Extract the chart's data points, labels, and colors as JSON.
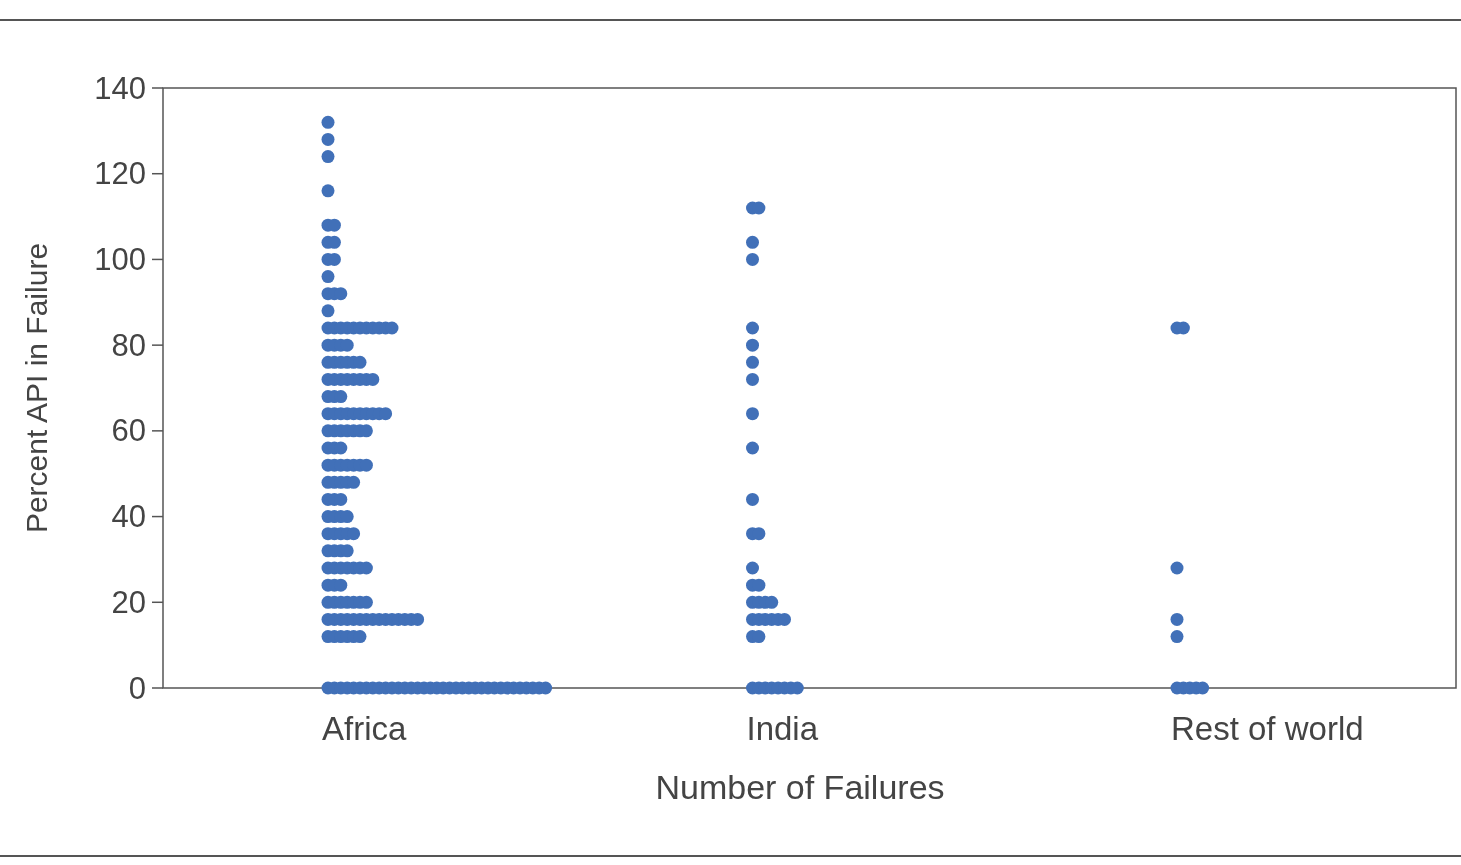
{
  "chart_data": {
    "type": "scatter",
    "xlabel": "Number of Failures",
    "ylabel": "Percent API in Failure",
    "categories": [
      "Africa",
      "India",
      "Rest of world"
    ],
    "ylim": [
      0,
      140
    ],
    "yticks": [
      0,
      20,
      40,
      60,
      80,
      100,
      120,
      140
    ],
    "marker": "circle",
    "series": [
      {
        "color": "#4170b8",
        "x": [
          "Africa",
          "Africa",
          "Africa",
          "Africa",
          "Africa",
          "Africa",
          "Africa",
          "Africa",
          "Africa",
          "Africa",
          "Africa",
          "Africa",
          "Africa",
          "Africa",
          "Africa",
          "Africa",
          "Africa",
          "Africa",
          "Africa",
          "Africa",
          "Africa",
          "Africa",
          "Africa",
          "Africa",
          "Africa",
          "Africa",
          "Africa",
          "Africa",
          "Africa",
          "Africa",
          "Africa",
          "Africa",
          "Africa",
          "Africa",
          "Africa",
          "Africa",
          "Africa",
          "Africa",
          "Africa",
          "Africa",
          "Africa",
          "Africa",
          "Africa",
          "Africa",
          "Africa",
          "Africa",
          "Africa",
          "Africa",
          "Africa",
          "Africa",
          "Africa",
          "Africa",
          "Africa",
          "Africa",
          "Africa",
          "Africa",
          "Africa",
          "Africa",
          "Africa",
          "Africa",
          "Africa",
          "Africa",
          "Africa",
          "Africa",
          "Africa",
          "Africa",
          "Africa",
          "Africa",
          "Africa",
          "Africa",
          "Africa",
          "Africa",
          "Africa",
          "Africa",
          "Africa",
          "Africa",
          "Africa",
          "Africa",
          "Africa",
          "Africa",
          "Africa",
          "Africa",
          "Africa",
          "Africa",
          "Africa",
          "Africa",
          "Africa",
          "Africa",
          "Africa",
          "Africa",
          "Africa",
          "Africa",
          "Africa",
          "Africa",
          "Africa",
          "Africa",
          "Africa",
          "Africa",
          "Africa",
          "Africa",
          "Africa",
          "Africa",
          "Africa",
          "Africa",
          "Africa",
          "Africa",
          "Africa",
          "Africa",
          "Africa",
          "Africa",
          "Africa",
          "Africa",
          "Africa",
          "Africa",
          "Africa",
          "Africa",
          "Africa",
          "Africa",
          "Africa",
          "Africa",
          "Africa",
          "Africa",
          "Africa",
          "Africa",
          "Africa",
          "Africa",
          "Africa",
          "Africa",
          "Africa",
          "Africa",
          "Africa",
          "Africa",
          "Africa",
          "Africa",
          "Africa",
          "Africa",
          "Africa",
          "Africa",
          "Africa",
          "Africa",
          "Africa",
          "Africa",
          "Africa",
          "Africa",
          "Africa",
          "Africa",
          "Africa",
          "Africa",
          "Africa",
          "Africa",
          "Africa",
          "Africa",
          "Africa",
          "Africa",
          "Africa",
          "Africa",
          "Africa",
          "Africa",
          "Africa",
          "Africa",
          "Africa",
          "Africa",
          "Africa",
          "Africa",
          "Africa",
          "Africa",
          "Africa",
          "Africa",
          "India",
          "India",
          "India",
          "India",
          "India",
          "India",
          "India",
          "India",
          "India",
          "India",
          "India",
          "India",
          "India",
          "India",
          "India",
          "India",
          "India",
          "India",
          "India",
          "India",
          "India",
          "India",
          "India",
          "India",
          "India",
          "India",
          "India",
          "India",
          "India",
          "India",
          "India",
          "India",
          "India",
          "India",
          "India",
          "India",
          "Rest of world",
          "Rest of world",
          "Rest of world",
          "Rest of world",
          "Rest of world",
          "Rest of world",
          "Rest of world",
          "Rest of world",
          "Rest of world",
          "Rest of world"
        ],
        "values": [
          132,
          128,
          124,
          116,
          108,
          108,
          104,
          104,
          100,
          100,
          96,
          92,
          92,
          92,
          88,
          84,
          84,
          84,
          84,
          84,
          84,
          84,
          84,
          84,
          84,
          84,
          80,
          80,
          80,
          80,
          76,
          76,
          76,
          76,
          76,
          76,
          72,
          72,
          72,
          72,
          72,
          72,
          72,
          72,
          68,
          68,
          68,
          64,
          64,
          64,
          64,
          64,
          64,
          64,
          64,
          64,
          64,
          60,
          60,
          60,
          60,
          60,
          60,
          60,
          56,
          56,
          56,
          52,
          52,
          52,
          52,
          52,
          52,
          52,
          48,
          48,
          48,
          48,
          48,
          44,
          44,
          44,
          40,
          40,
          40,
          40,
          36,
          36,
          36,
          36,
          36,
          32,
          32,
          32,
          32,
          28,
          28,
          28,
          28,
          28,
          28,
          28,
          24,
          24,
          24,
          20,
          20,
          20,
          20,
          20,
          20,
          20,
          16,
          16,
          16,
          16,
          16,
          16,
          16,
          16,
          16,
          16,
          16,
          16,
          16,
          16,
          16,
          12,
          12,
          12,
          12,
          12,
          12,
          0,
          0,
          0,
          0,
          0,
          0,
          0,
          0,
          0,
          0,
          0,
          0,
          0,
          0,
          0,
          0,
          0,
          0,
          0,
          0,
          0,
          0,
          0,
          0,
          0,
          0,
          0,
          0,
          0,
          0,
          0,
          0,
          0,
          0,
          0,
          112,
          112,
          104,
          100,
          84,
          80,
          76,
          72,
          64,
          56,
          44,
          36,
          36,
          28,
          24,
          24,
          20,
          20,
          20,
          20,
          16,
          16,
          16,
          16,
          16,
          16,
          12,
          12,
          0,
          0,
          0,
          0,
          0,
          0,
          0,
          0,
          84,
          84,
          28,
          16,
          12,
          0,
          0,
          0,
          0,
          0
        ]
      }
    ]
  }
}
